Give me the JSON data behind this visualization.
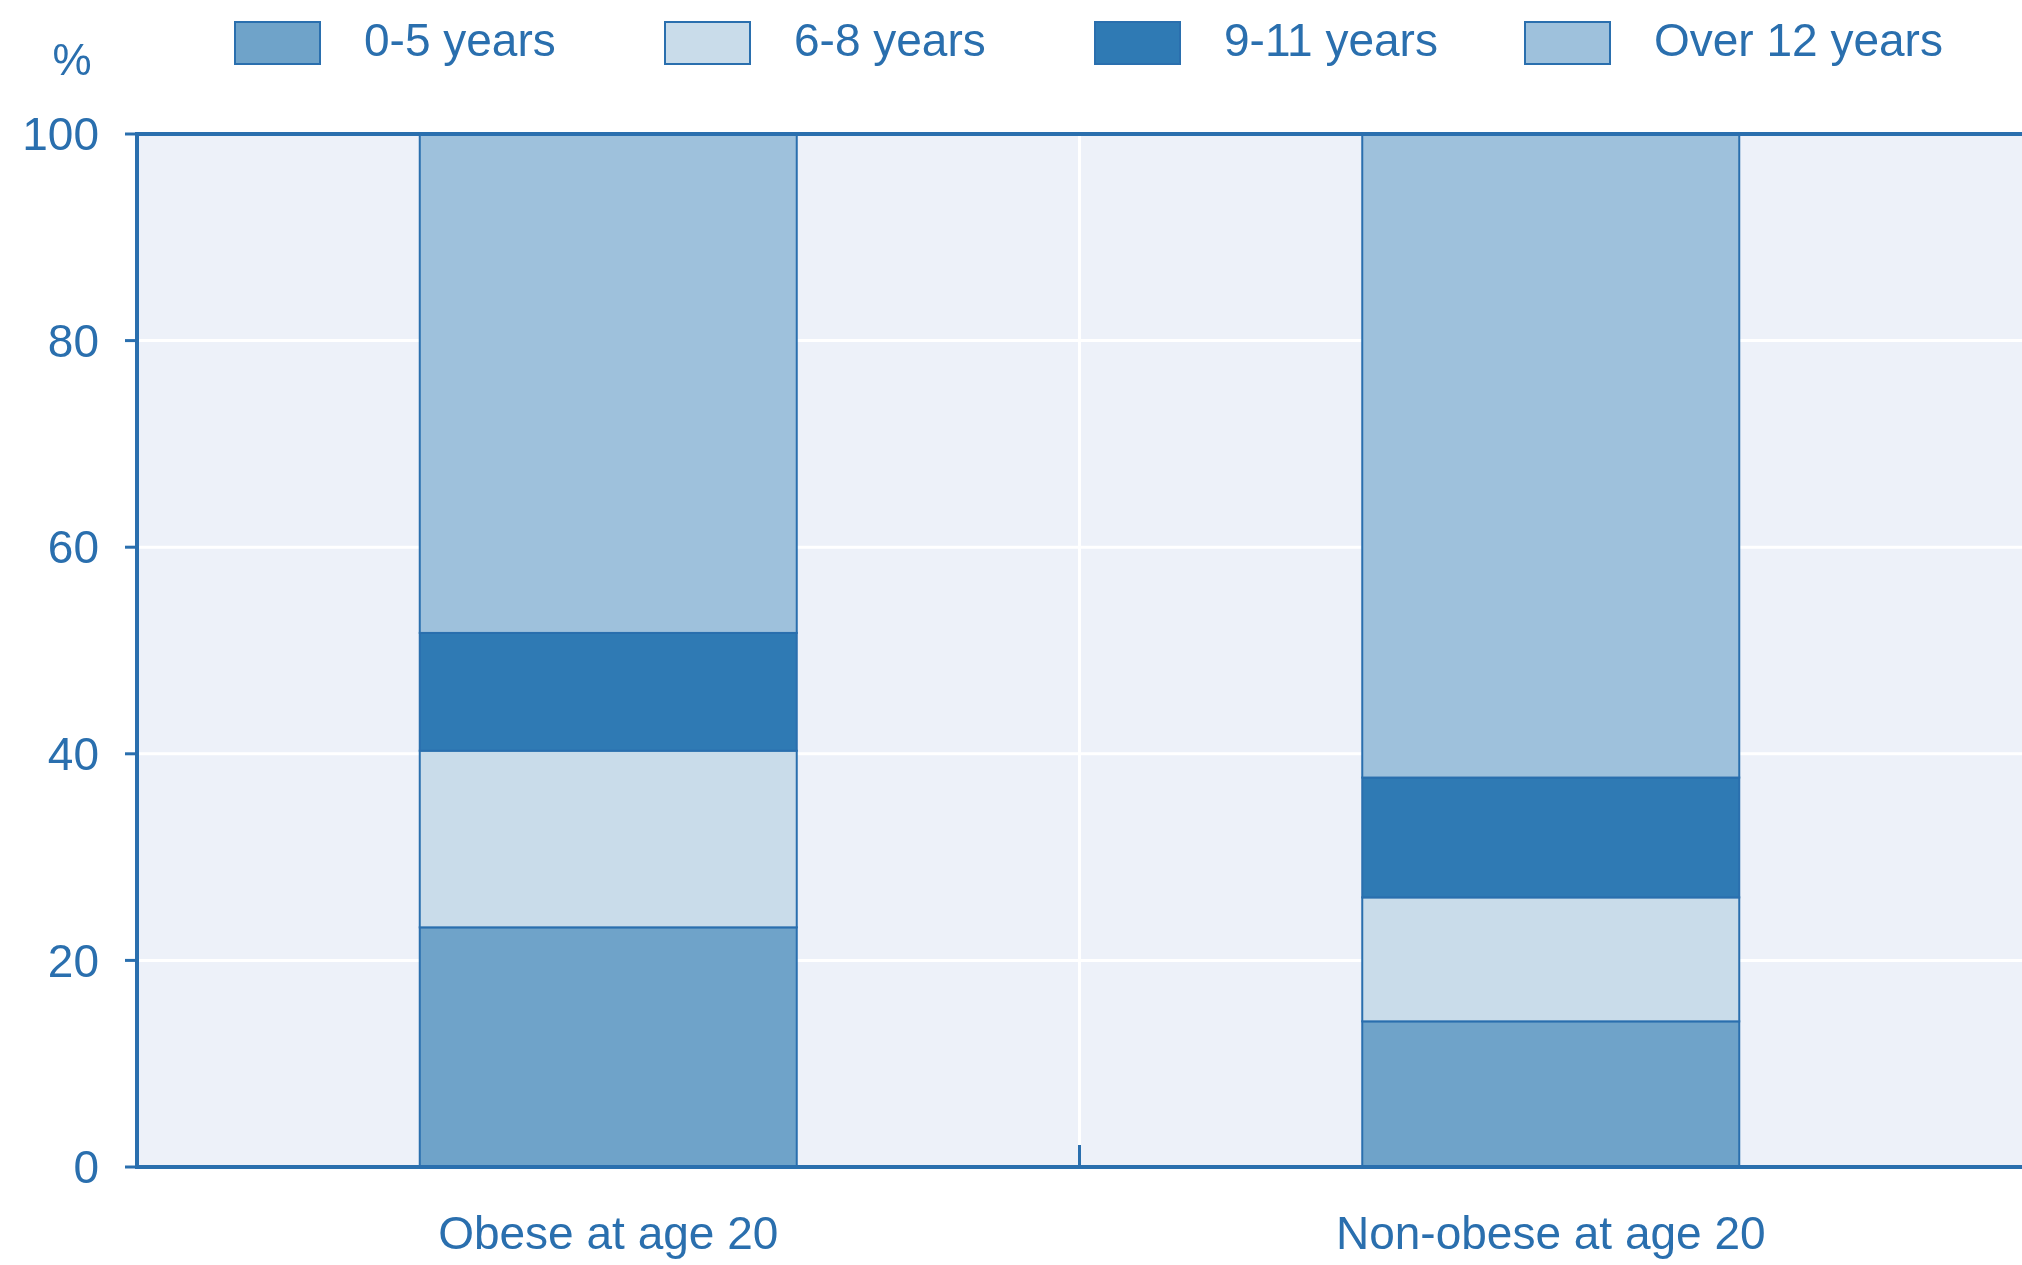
{
  "chart_data": {
    "type": "bar",
    "stacked": true,
    "ylabel": "%",
    "categories": [
      "Obese at age 20",
      "Non-obese at age 20"
    ],
    "series": [
      {
        "name": "0-5 years",
        "color": "#6fa3c9",
        "values": [
          23.2,
          14.1
        ]
      },
      {
        "name": "6-8 years",
        "color": "#c9dcea",
        "values": [
          17.1,
          12.0
        ]
      },
      {
        "name": "9-11 years",
        "color": "#2f7ab4",
        "values": [
          11.4,
          11.6
        ]
      },
      {
        "name": "Over 12 years",
        "color": "#9ec1dc",
        "values": [
          48.3,
          62.3
        ]
      }
    ],
    "ylim": [
      0,
      100
    ],
    "yticks": [
      0,
      20,
      40,
      60,
      80,
      100
    ],
    "grid": true,
    "legend": "top"
  }
}
